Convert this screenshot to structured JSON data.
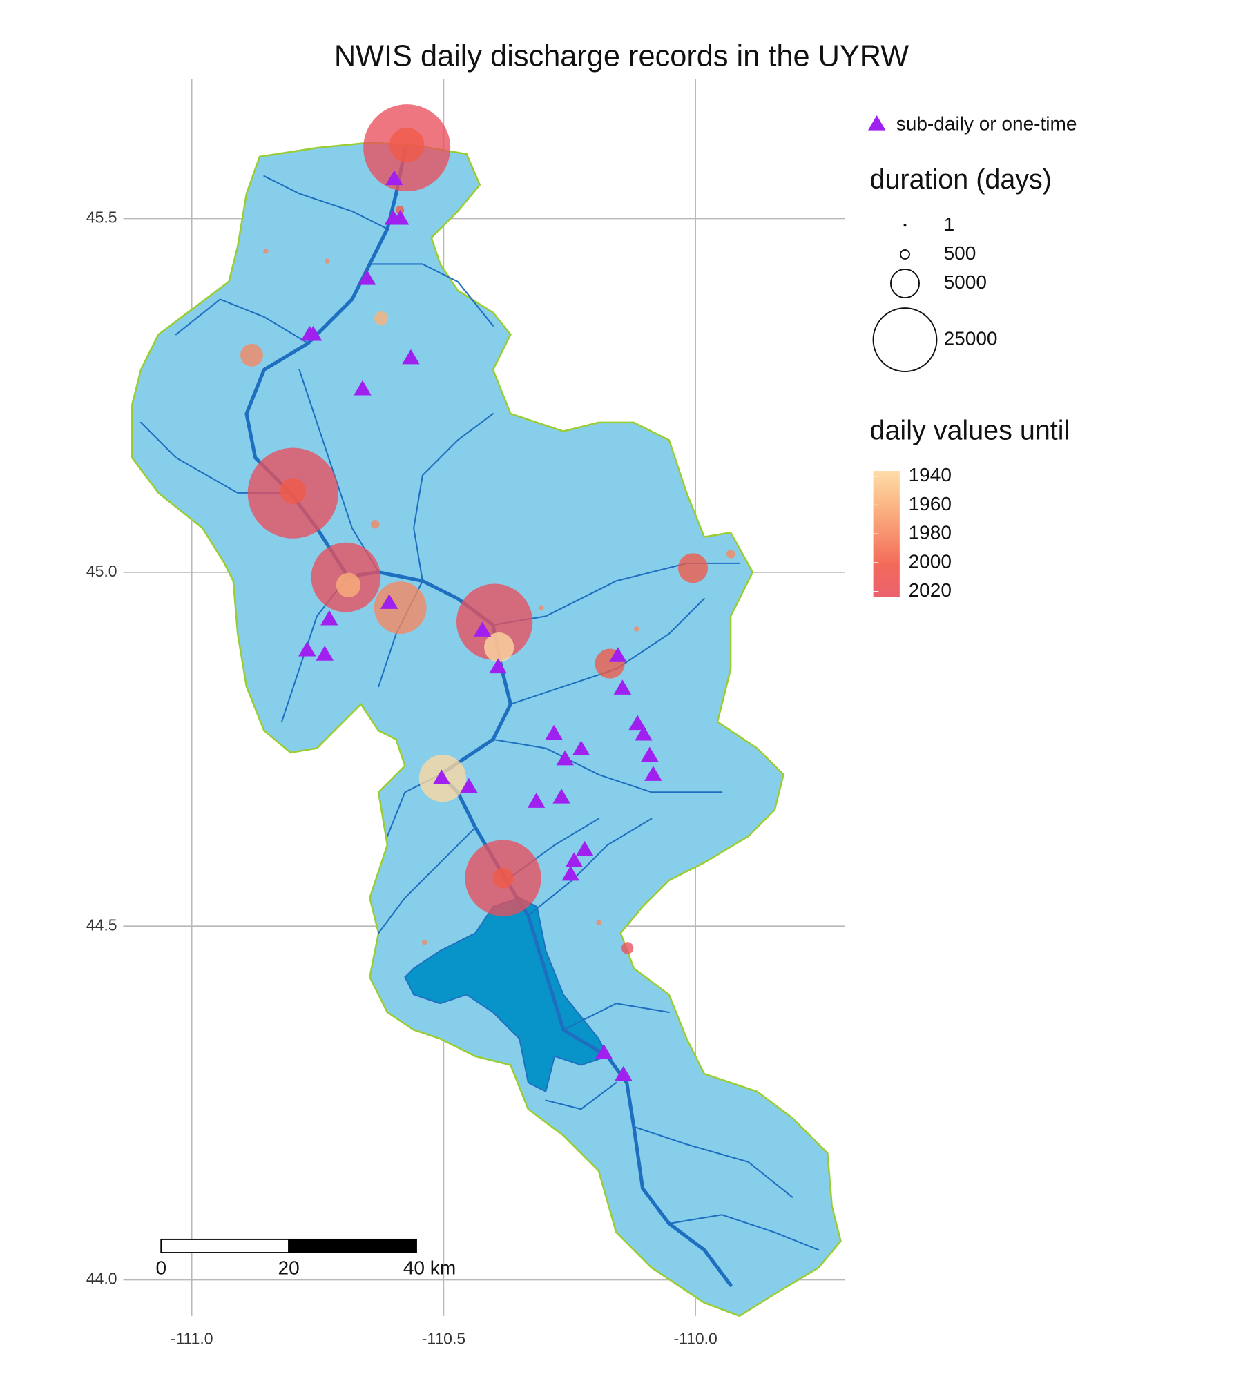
{
  "chart_data": {
    "type": "map",
    "title": "NWIS daily discharge records in the UYRW",
    "xlim": [
      -111.136,
      -109.703
    ],
    "ylim": [
      43.949,
      45.697
    ],
    "xticks": [
      {
        "value": -111,
        "label": "-111.0"
      },
      -110.5,
      {
        "value": -110,
        "label": "-110.0"
      }
    ],
    "yticks": [
      {
        "value": 44,
        "label": "44.0"
      },
      44.5,
      {
        "value": 45,
        "label": "45.0"
      },
      45.5
    ],
    "grid": true,
    "triangle_legend": {
      "label": "sub-daily or one-time",
      "color": "#a020f0"
    },
    "size_legend": {
      "title": "duration (days)",
      "values": [
        1,
        500,
        5000,
        25000
      ]
    },
    "color_legend": {
      "title": "daily values until",
      "values": [
        1940,
        1960,
        1980,
        2000,
        2020
      ],
      "colors": [
        "#fdd9a0",
        "#fbb27a",
        "#f7875f",
        "#f15a48",
        "#e8505e"
      ]
    },
    "scale_bar": {
      "labels": [
        "0",
        "20",
        "40 km"
      ]
    },
    "sites": [
      {
        "lon": -110.573,
        "lat": 45.6,
        "duration": 47000,
        "until": 2020
      },
      {
        "lon": -110.573,
        "lat": 45.604,
        "duration": 7500,
        "until": 2000
      },
      {
        "lon": -110.799,
        "lat": 45.112,
        "duration": 51000,
        "until": 2020
      },
      {
        "lon": -110.799,
        "lat": 45.115,
        "duration": 4200,
        "until": 2000
      },
      {
        "lon": -110.694,
        "lat": 44.993,
        "duration": 30000,
        "until": 2020
      },
      {
        "lon": -110.689,
        "lat": 44.982,
        "duration": 3700,
        "until": 1960
      },
      {
        "lon": -110.586,
        "lat": 44.95,
        "duration": 17000,
        "until": 1980
      },
      {
        "lon": -110.399,
        "lat": 44.93,
        "duration": 36000,
        "until": 2020
      },
      {
        "lon": -110.39,
        "lat": 44.894,
        "duration": 5500,
        "until": 1940
      },
      {
        "lon": -110.382,
        "lat": 44.568,
        "duration": 36000,
        "until": 2020
      },
      {
        "lon": -110.382,
        "lat": 44.568,
        "duration": 2700,
        "until": 2000
      },
      {
        "lon": -110.502,
        "lat": 44.709,
        "duration": 13800,
        "until": 1940
      },
      {
        "lon": -110.005,
        "lat": 45.006,
        "duration": 5500,
        "until": 2000
      },
      {
        "lon": -110.17,
        "lat": 44.871,
        "duration": 5500,
        "until": 2000
      },
      {
        "lon": -110.881,
        "lat": 45.307,
        "duration": 3200,
        "until": 1980
      },
      {
        "lon": -110.135,
        "lat": 44.469,
        "duration": 900,
        "until": 2020
      },
      {
        "lon": -110.624,
        "lat": 45.359,
        "duration": 1200,
        "until": 1960
      },
      {
        "lon": -109.93,
        "lat": 45.026,
        "duration": 470,
        "until": 1980
      },
      {
        "lon": -110.636,
        "lat": 45.068,
        "duration": 470,
        "until": 1980
      },
      {
        "lon": -110.853,
        "lat": 45.454,
        "duration": 170,
        "until": 1980
      },
      {
        "lon": -110.731,
        "lat": 45.44,
        "duration": 170,
        "until": 1980
      },
      {
        "lon": -110.117,
        "lat": 44.92,
        "duration": 170,
        "until": 1980
      },
      {
        "lon": -110.192,
        "lat": 44.505,
        "duration": 170,
        "until": 1980
      },
      {
        "lon": -110.538,
        "lat": 44.477,
        "duration": 170,
        "until": 1980
      },
      {
        "lon": -110.306,
        "lat": 44.95,
        "duration": 170,
        "until": 1980
      },
      {
        "lon": -110.587,
        "lat": 45.512,
        "duration": 470,
        "until": 2000
      }
    ],
    "triangles": [
      {
        "lon": -110.598,
        "lat": 45.556
      },
      {
        "lon": -110.6,
        "lat": 45.5
      },
      {
        "lon": -110.586,
        "lat": 45.5
      },
      {
        "lon": -110.652,
        "lat": 45.415
      },
      {
        "lon": -110.766,
        "lat": 45.336
      },
      {
        "lon": -110.759,
        "lat": 45.336
      },
      {
        "lon": -110.565,
        "lat": 45.303
      },
      {
        "lon": -110.661,
        "lat": 45.259
      },
      {
        "lon": -110.727,
        "lat": 44.934
      },
      {
        "lon": -110.771,
        "lat": 44.89
      },
      {
        "lon": -110.736,
        "lat": 44.884
      },
      {
        "lon": -110.608,
        "lat": 44.957
      },
      {
        "lon": -110.392,
        "lat": 44.866
      },
      {
        "lon": -110.423,
        "lat": 44.918
      },
      {
        "lon": -110.154,
        "lat": 44.882
      },
      {
        "lon": -110.145,
        "lat": 44.836
      },
      {
        "lon": -110.281,
        "lat": 44.772
      },
      {
        "lon": -110.227,
        "lat": 44.75
      },
      {
        "lon": -110.259,
        "lat": 44.736
      },
      {
        "lon": -110.115,
        "lat": 44.786
      },
      {
        "lon": -110.103,
        "lat": 44.771
      },
      {
        "lon": -110.091,
        "lat": 44.741
      },
      {
        "lon": -110.084,
        "lat": 44.714
      },
      {
        "lon": -110.316,
        "lat": 44.676
      },
      {
        "lon": -110.266,
        "lat": 44.682
      },
      {
        "lon": -110.45,
        "lat": 44.697
      },
      {
        "lon": -110.504,
        "lat": 44.709
      },
      {
        "lon": -110.22,
        "lat": 44.608
      },
      {
        "lon": -110.241,
        "lat": 44.592
      },
      {
        "lon": -110.248,
        "lat": 44.573
      },
      {
        "lon": -110.182,
        "lat": 44.321
      },
      {
        "lon": -110.143,
        "lat": 44.29
      }
    ]
  }
}
